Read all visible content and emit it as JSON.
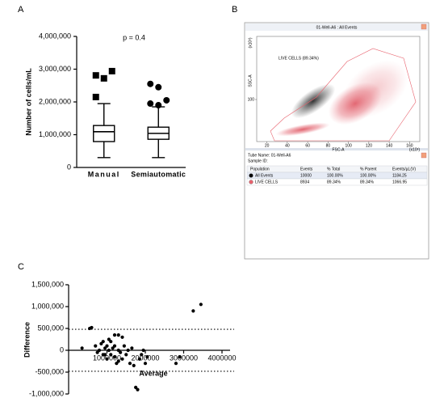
{
  "chart_data": [
    {
      "type": "box",
      "panel": "A",
      "ylabel": "Number of cells/mL",
      "annotation": "p = 0.4",
      "categories": [
        "Manual",
        "Semiautomatic"
      ],
      "boxes": [
        {
          "min": 300000,
          "q1": 790000,
          "median": 1090000,
          "q3": 1280000,
          "max": 1950000,
          "outliers": [
            2810000,
            2720000,
            2940000,
            2150000
          ]
        },
        {
          "min": 300000,
          "q1": 860000,
          "median": 1040000,
          "q3": 1230000,
          "max": 1850000,
          "outliers": [
            2550000,
            2450000,
            2050000,
            1950000,
            1900000
          ]
        }
      ],
      "markers": [
        "square",
        "circle"
      ],
      "color": "#000000",
      "ylim": [
        0,
        4000000
      ],
      "yticks": [
        0,
        {
          "value": 1000000,
          "label": "1,000,000"
        },
        {
          "value": 2000000,
          "label": "2,000,000"
        },
        {
          "value": 3000000,
          "label": "3,000,000"
        },
        {
          "value": 4000000,
          "label": "4,000,000"
        }
      ]
    },
    {
      "type": "flow",
      "panel": "B",
      "title": "01-Well-A6 : All Events",
      "xlabel": "FSC-A",
      "ylabel": "SSC-A",
      "gate_label": "LIVE CELLS (89.34%)",
      "axis_unit": "(x10³)",
      "gate_color": "#e8636e",
      "xlim": [
        10,
        170
      ],
      "xticks": [
        20,
        40,
        60,
        80,
        100,
        120,
        140,
        160
      ],
      "ylim": [
        0,
        250
      ],
      "yticks": [
        100
      ],
      "table": {
        "tube": "Tube Name: 01-Well-A6",
        "sample": "Sample ID:",
        "columns": [
          "Population",
          "Events",
          "% Total",
          "% Parent",
          "Events/µL(V)"
        ],
        "rows": [
          [
            "All Events",
            "10000",
            "100.00%",
            "100.00%",
            "1184.25"
          ],
          [
            "LIVE CELLS",
            "8934",
            "89.34%",
            "89.34%",
            "1066.95"
          ]
        ],
        "row_colors": [
          "#000000",
          "#e8636e"
        ]
      }
    },
    {
      "type": "scatter",
      "panel": "C",
      "xlabel": "Average",
      "ylabel": "Difference",
      "color": "#000000",
      "x": [
        350000,
        550000,
        600000,
        700000,
        750000,
        800000,
        850000,
        900000,
        950000,
        1000000,
        1000000,
        1050000,
        1100000,
        1100000,
        1150000,
        1200000,
        1200000,
        1250000,
        1300000,
        1300000,
        1350000,
        1400000,
        1400000,
        1450000,
        1500000,
        1550000,
        1600000,
        1650000,
        1700000,
        1750000,
        1800000,
        1850000,
        1900000,
        1950000,
        2000000,
        2050000,
        900000,
        1050000,
        1200000,
        2800000,
        2900000,
        3250000,
        3450000,
        1300000,
        950000
      ],
      "values": [
        50000,
        500000,
        520000,
        100000,
        -50000,
        0,
        150000,
        -100000,
        50000,
        -200000,
        100000,
        0,
        -100000,
        200000,
        50000,
        -150000,
        100000,
        -300000,
        350000,
        0,
        -50000,
        300000,
        -200000,
        100000,
        -100000,
        0,
        -300000,
        50000,
        -350000,
        -850000,
        -900000,
        -200000,
        -100000,
        0,
        -300000,
        -150000,
        200000,
        250000,
        350000,
        -300000,
        -150000,
        900000,
        1050000,
        -250000,
        -100000
      ],
      "xlim": [
        0,
        4000000
      ],
      "xticks": [
        1000000,
        2000000,
        3000000,
        4000000
      ],
      "ylim": [
        -1000000,
        1500000
      ],
      "yticks": [
        {
          "value": -1000000,
          "label": "-1,000,000"
        },
        {
          "value": -500000,
          "label": "-500,000"
        },
        0,
        {
          "value": 500000,
          "label": "500,000"
        },
        {
          "value": 1000000,
          "label": "1,000,000"
        },
        {
          "value": 1500000,
          "label": "1,500,000"
        }
      ],
      "reference_lines": [
        480000,
        -480000
      ]
    }
  ]
}
